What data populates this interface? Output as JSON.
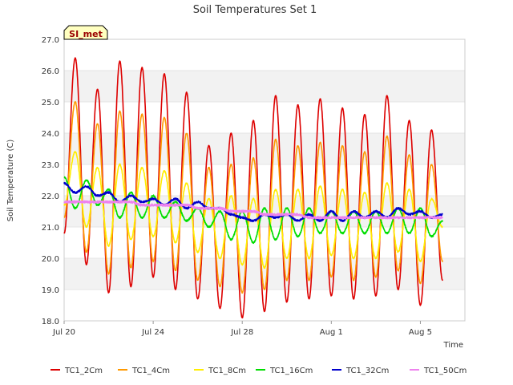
{
  "chart_data": {
    "type": "line",
    "title": "Soil Temperatures Set 1",
    "xlabel": "Time",
    "ylabel": "Soil Temperature (C)",
    "station_badge": "SI_met",
    "xlim": [
      0,
      18
    ],
    "ylim": [
      18.0,
      27.0
    ],
    "yticks": [
      "18.0",
      "19.0",
      "20.0",
      "21.0",
      "22.0",
      "23.0",
      "24.0",
      "25.0",
      "26.0",
      "27.0"
    ],
    "ytick_values": [
      18,
      19,
      20,
      21,
      22,
      23,
      24,
      25,
      26,
      27
    ],
    "xticks": [
      {
        "label": "Jul 20",
        "value": 0
      },
      {
        "label": "Jul 24",
        "value": 4
      },
      {
        "label": "Jul 28",
        "value": 8
      },
      {
        "label": "Aug 1",
        "value": 12
      },
      {
        "label": "Aug 5",
        "value": 16
      }
    ],
    "grid": "alternating horizontal bands",
    "legend_position": "bottom",
    "daily_extremes_x": [
      0.0,
      0.5,
      1.0,
      1.5,
      2.0,
      2.5,
      3.0,
      3.5,
      4.0,
      4.5,
      5.0,
      5.5,
      6.0,
      6.5,
      7.0,
      7.5,
      8.0,
      8.5,
      9.0,
      9.5,
      10.0,
      10.5,
      11.0,
      11.5,
      12.0,
      12.5,
      13.0,
      13.5,
      14.0,
      14.5,
      15.0,
      15.5,
      16.0,
      16.5,
      17.0
    ],
    "series": [
      {
        "name": "TC1_2Cm",
        "color": "#dd0000",
        "values": [
          20.8,
          26.4,
          19.8,
          25.4,
          18.9,
          26.3,
          19.1,
          26.1,
          19.4,
          25.9,
          19.0,
          25.3,
          18.7,
          23.6,
          18.4,
          24.0,
          18.1,
          24.4,
          18.3,
          25.2,
          18.6,
          24.9,
          18.7,
          25.1,
          18.8,
          24.8,
          18.7,
          24.6,
          18.8,
          25.2,
          19.0,
          24.4,
          18.5,
          24.1,
          19.3
        ]
      },
      {
        "name": "TC1_4Cm",
        "color": "#ff9900",
        "values": [
          21.3,
          25.0,
          20.2,
          24.3,
          19.5,
          24.7,
          19.7,
          24.6,
          19.9,
          24.5,
          19.6,
          24.0,
          19.3,
          22.9,
          19.1,
          23.0,
          18.9,
          23.2,
          19.0,
          23.8,
          19.3,
          23.6,
          19.3,
          23.7,
          19.4,
          23.6,
          19.3,
          23.4,
          19.4,
          23.9,
          19.6,
          23.3,
          19.2,
          23.0,
          19.9
        ]
      },
      {
        "name": "TC1_8Cm",
        "color": "#ffee00",
        "values": [
          21.7,
          23.4,
          21.0,
          22.9,
          20.4,
          23.0,
          20.6,
          22.9,
          20.7,
          22.8,
          20.5,
          22.4,
          20.2,
          21.9,
          20.0,
          22.0,
          19.8,
          21.9,
          19.7,
          22.2,
          20.0,
          22.2,
          20.0,
          22.3,
          20.1,
          22.2,
          20.0,
          22.1,
          20.0,
          22.4,
          20.2,
          22.2,
          19.9,
          21.9,
          21.0
        ]
      },
      {
        "name": "TC1_16Cm",
        "color": "#00dd00",
        "values": [
          22.6,
          21.6,
          22.5,
          21.7,
          22.2,
          21.3,
          22.1,
          21.3,
          22.0,
          21.3,
          21.8,
          21.2,
          21.6,
          21.0,
          21.5,
          20.6,
          21.5,
          20.5,
          21.6,
          20.6,
          21.6,
          20.7,
          21.6,
          20.8,
          21.5,
          20.8,
          21.5,
          20.8,
          21.5,
          20.8,
          21.6,
          20.8,
          21.6,
          20.7,
          21.2
        ]
      },
      {
        "name": "TC1_32Cm",
        "color": "#0000cc",
        "values": [
          22.4,
          22.1,
          22.3,
          22.0,
          22.1,
          21.8,
          22.0,
          21.8,
          21.9,
          21.7,
          21.9,
          21.6,
          21.8,
          21.6,
          21.6,
          21.4,
          21.3,
          21.2,
          21.4,
          21.3,
          21.4,
          21.2,
          21.4,
          21.2,
          21.5,
          21.2,
          21.5,
          21.3,
          21.5,
          21.3,
          21.6,
          21.4,
          21.5,
          21.3,
          21.4
        ]
      },
      {
        "name": "TC1_50Cm",
        "color": "#ee82ee",
        "values": [
          21.8,
          21.8,
          21.8,
          21.8,
          21.8,
          21.8,
          21.8,
          21.7,
          21.7,
          21.7,
          21.7,
          21.7,
          21.6,
          21.6,
          21.6,
          21.5,
          21.5,
          21.5,
          21.4,
          21.4,
          21.4,
          21.4,
          21.3,
          21.3,
          21.3,
          21.3,
          21.3,
          21.3,
          21.3,
          21.3,
          21.3,
          21.3,
          21.3,
          21.3,
          21.3
        ]
      }
    ]
  }
}
